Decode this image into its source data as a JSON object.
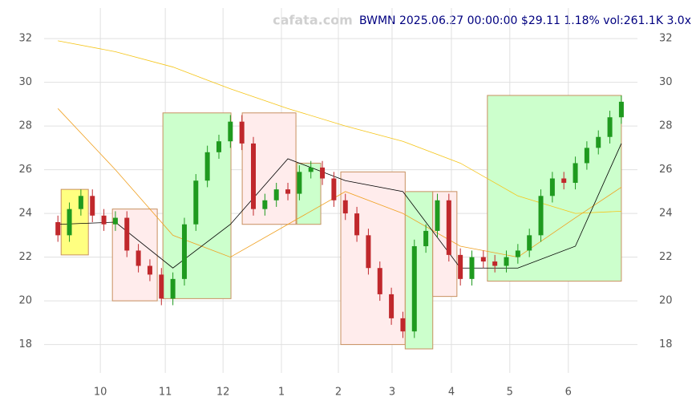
{
  "chart_data": {
    "type": "candlestick",
    "watermark": "cafata.com",
    "title": "BWMN 2025.06.27 00:00:00 $29.11 1.18% vol:261.1K 3.0x",
    "title_color": "#000080",
    "up_color": "#1f9a1f",
    "down_color": "#c0282c",
    "grid": true,
    "xlim": [
      -1.2,
      50.4
    ],
    "ylim": [
      16.7,
      33.4
    ],
    "yticks": [
      18,
      20,
      22,
      24,
      26,
      28,
      30,
      32
    ],
    "xticks": [
      {
        "value": 3.69,
        "label": "10"
      },
      {
        "value": 9.34,
        "label": "11"
      },
      {
        "value": 14.36,
        "label": "12"
      },
      {
        "value": 19.44,
        "label": "1"
      },
      {
        "value": 24.39,
        "label": "2"
      },
      {
        "value": 29.06,
        "label": "3"
      },
      {
        "value": 34.22,
        "label": "4"
      },
      {
        "value": 39.3,
        "label": "5"
      },
      {
        "value": 44.39,
        "label": "6"
      }
    ],
    "open": [
      23.6,
      23.0,
      24.2,
      24.8,
      23.9,
      23.5,
      23.8,
      22.3,
      21.6,
      21.2,
      20.1,
      21.0,
      23.5,
      25.5,
      26.8,
      27.3,
      28.2,
      27.2,
      24.2,
      24.6,
      25.1,
      24.9,
      25.9,
      26.1,
      25.6,
      24.6,
      24.0,
      23.0,
      21.5,
      20.3,
      19.2,
      18.6,
      22.5,
      23.2,
      24.6,
      22.1,
      21.0,
      22.0,
      21.8,
      21.6,
      22.0,
      22.3,
      23.0,
      24.8,
      25.6,
      25.4,
      26.3,
      27.0,
      27.5,
      28.4
    ],
    "high": [
      23.9,
      24.5,
      25.1,
      25.1,
      24.2,
      24.1,
      24.1,
      22.6,
      21.9,
      21.5,
      21.3,
      23.8,
      25.8,
      27.1,
      27.6,
      28.5,
      28.5,
      27.5,
      24.9,
      25.4,
      25.4,
      26.2,
      26.4,
      26.4,
      25.9,
      24.9,
      24.3,
      23.3,
      21.8,
      20.6,
      19.5,
      22.8,
      23.5,
      24.9,
      24.9,
      22.4,
      22.3,
      22.3,
      22.1,
      22.3,
      22.6,
      23.3,
      25.1,
      25.9,
      25.9,
      26.6,
      27.3,
      27.8,
      28.7,
      29.4
    ],
    "low": [
      22.7,
      22.7,
      23.9,
      23.6,
      23.2,
      23.2,
      22.0,
      21.3,
      20.9,
      19.8,
      19.8,
      20.7,
      23.2,
      25.2,
      26.5,
      27.0,
      26.9,
      23.9,
      23.9,
      24.3,
      24.6,
      24.6,
      25.6,
      25.3,
      24.3,
      23.7,
      22.7,
      21.2,
      20.0,
      18.9,
      18.3,
      18.3,
      22.2,
      22.9,
      21.8,
      20.7,
      20.7,
      21.5,
      21.3,
      21.3,
      21.7,
      22.0,
      22.7,
      24.5,
      25.1,
      25.1,
      26.0,
      26.7,
      27.2,
      28.1
    ],
    "close": [
      23.0,
      24.2,
      24.8,
      23.9,
      23.5,
      23.8,
      22.3,
      21.6,
      21.2,
      20.1,
      21.0,
      23.5,
      25.5,
      26.8,
      27.3,
      28.2,
      27.2,
      24.2,
      24.6,
      25.1,
      24.9,
      25.9,
      26.1,
      25.6,
      24.6,
      24.0,
      23.0,
      21.5,
      20.3,
      19.2,
      18.6,
      22.5,
      23.2,
      24.6,
      22.1,
      21.0,
      22.0,
      21.8,
      21.6,
      22.0,
      22.3,
      23.0,
      24.8,
      25.6,
      25.4,
      26.3,
      27.0,
      27.5,
      28.4,
      29.11
    ],
    "zones": [
      {
        "x": [
          0.28,
          2.65
        ],
        "y": [
          22.1,
          25.1
        ],
        "color": "#ffff80"
      },
      {
        "x": [
          4.74,
          8.64
        ],
        "y": [
          20.0,
          24.2
        ],
        "color": "#ffecec"
      },
      {
        "x": [
          9.13,
          15.05
        ],
        "y": [
          20.1,
          28.6
        ],
        "color": "#ccffcc"
      },
      {
        "x": [
          16.03,
          20.7
        ],
        "y": [
          23.5,
          28.6
        ],
        "color": "#ffecec"
      },
      {
        "x": [
          20.77,
          22.86
        ],
        "y": [
          23.5,
          26.3
        ],
        "color": "#ccffcc"
      },
      {
        "x": [
          24.6,
          30.2
        ],
        "y": [
          18.0,
          25.9
        ],
        "color": "#ffecec"
      },
      {
        "x": [
          30.2,
          32.6
        ],
        "y": [
          17.8,
          25.0
        ],
        "color": "#ccffcc"
      },
      {
        "x": [
          32.6,
          34.7
        ],
        "y": [
          20.2,
          25.0
        ],
        "color": "#ffecec"
      },
      {
        "x": [
          37.35,
          49.0
        ],
        "y": [
          20.9,
          29.4
        ],
        "color": "#ccffcc"
      }
    ],
    "lines": [
      {
        "color": "#f5c518",
        "x": [
          0,
          5,
          10,
          15,
          20,
          25,
          30,
          35,
          40,
          45,
          49
        ],
        "values": [
          31.9,
          31.4,
          30.7,
          29.7,
          28.8,
          28.0,
          27.3,
          26.3,
          24.8,
          24.0,
          24.1
        ]
      },
      {
        "color": "#f0a020",
        "x": [
          0,
          5,
          10,
          15,
          20,
          25,
          30,
          35,
          40,
          45,
          49
        ],
        "values": [
          28.8,
          26.0,
          23.0,
          22.0,
          23.5,
          25.0,
          24.0,
          22.5,
          22.0,
          23.8,
          25.2
        ]
      },
      {
        "color": "#000000",
        "x": [
          0,
          5,
          10,
          15,
          20,
          25,
          30,
          35,
          40,
          45,
          49
        ],
        "values": [
          23.5,
          23.6,
          21.5,
          23.5,
          26.5,
          25.5,
          25.0,
          21.5,
          21.5,
          22.5,
          27.2
        ]
      }
    ]
  }
}
